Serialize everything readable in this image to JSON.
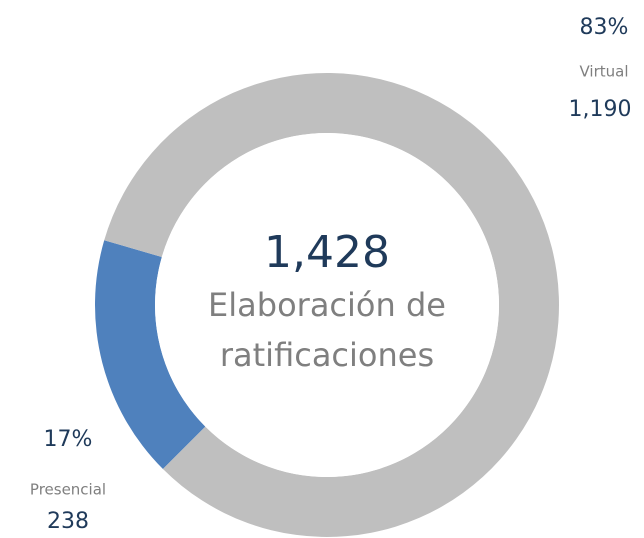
{
  "chart_data": {
    "type": "donut",
    "categories": [
      "Presencial",
      "Virtual"
    ],
    "values": [
      17,
      83
    ],
    "value_labels": [
      "17%",
      "83%"
    ],
    "counts": [
      238,
      1190
    ],
    "count_labels": [
      "238",
      "1,190"
    ],
    "colors": [
      "#4f81bd",
      "#bfbfbf"
    ],
    "total": {
      "value": 1428,
      "label": "1,428"
    },
    "center_label": [
      "Elaboración de",
      "ratificaciones"
    ]
  }
}
